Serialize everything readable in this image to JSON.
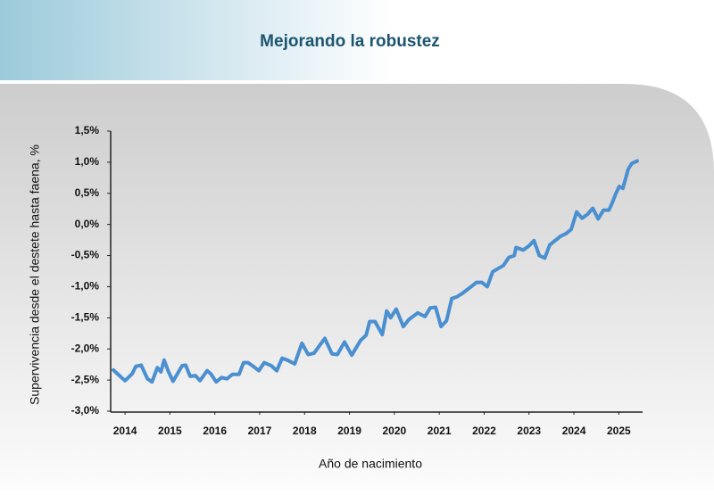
{
  "chart_data": {
    "type": "line",
    "title": "Mejorando la robustez",
    "x_label": "Año de nacimiento",
    "y_label": "Supervivencia desde el destete hasta faena, %",
    "color": "#4a8fd0",
    "grid": false,
    "xlim": [
      2013.68,
      2025.53
    ],
    "xticks": [
      2014,
      2015,
      2016,
      2017,
      2018,
      2019,
      2020,
      2021,
      2022,
      2023,
      2024,
      2025
    ],
    "ylim": [
      -3,
      1.5
    ],
    "yticks": [
      {
        "value": 1.5,
        "label": "1,5%"
      },
      {
        "value": 1,
        "label": "1,0%"
      },
      {
        "value": 0.5,
        "label": "0,5%"
      },
      {
        "value": 0,
        "label": "0,0%"
      },
      {
        "value": -0.5,
        "label": "-0,5%"
      },
      {
        "value": -1,
        "label": "-1,0%"
      },
      {
        "value": -1.5,
        "label": "-1,5%"
      },
      {
        "value": -2,
        "label": "-2,0%"
      },
      {
        "value": -2.5,
        "label": "-2,5%"
      },
      {
        "value": -3,
        "label": "-3,0%"
      }
    ],
    "x": [
      2013.74,
      2013.86,
      2014.0,
      2014.16,
      2014.24,
      2014.36,
      2014.5,
      2014.6,
      2014.72,
      2014.8,
      2014.87,
      2014.97,
      2015.07,
      2015.27,
      2015.35,
      2015.45,
      2015.57,
      2015.67,
      2015.83,
      2015.91,
      2016.03,
      2016.15,
      2016.27,
      2016.39,
      2016.54,
      2016.64,
      2016.74,
      2016.84,
      2016.98,
      2017.1,
      2017.26,
      2017.38,
      2017.5,
      2017.62,
      2017.78,
      2017.94,
      2018.08,
      2018.21,
      2018.45,
      2018.61,
      2018.73,
      2018.89,
      2019.05,
      2019.25,
      2019.37,
      2019.45,
      2019.57,
      2019.73,
      2019.83,
      2019.92,
      2020.04,
      2020.2,
      2020.32,
      2020.52,
      2020.68,
      2020.8,
      2020.92,
      2021.04,
      2021.16,
      2021.28,
      2021.4,
      2021.51,
      2021.71,
      2021.83,
      2021.95,
      2022.07,
      2022.19,
      2022.31,
      2022.43,
      2022.55,
      2022.67,
      2022.71,
      2022.87,
      2022.99,
      2023.11,
      2023.23,
      2023.35,
      2023.46,
      2023.58,
      2023.7,
      2023.82,
      2023.94,
      2024.06,
      2024.18,
      2024.3,
      2024.42,
      2024.54,
      2024.66,
      2024.78,
      2024.85,
      2024.93,
      2025.01,
      2025.09,
      2025.21,
      2025.29,
      2025.41
    ],
    "values": [
      -2.34,
      -2.42,
      -2.51,
      -2.4,
      -2.28,
      -2.26,
      -2.48,
      -2.53,
      -2.3,
      -2.37,
      -2.18,
      -2.37,
      -2.52,
      -2.27,
      -2.26,
      -2.44,
      -2.43,
      -2.51,
      -2.35,
      -2.4,
      -2.53,
      -2.46,
      -2.48,
      -2.41,
      -2.41,
      -2.22,
      -2.22,
      -2.27,
      -2.35,
      -2.22,
      -2.27,
      -2.35,
      -2.15,
      -2.18,
      -2.24,
      -1.91,
      -2.09,
      -2.07,
      -1.83,
      -2.08,
      -2.09,
      -1.89,
      -2.1,
      -1.86,
      -1.78,
      -1.56,
      -1.56,
      -1.77,
      -1.39,
      -1.5,
      -1.36,
      -1.64,
      -1.53,
      -1.42,
      -1.48,
      -1.34,
      -1.33,
      -1.64,
      -1.55,
      -1.19,
      -1.16,
      -1.11,
      -1.0,
      -0.93,
      -0.93,
      -1.0,
      -0.76,
      -0.71,
      -0.66,
      -0.53,
      -0.5,
      -0.37,
      -0.41,
      -0.35,
      -0.26,
      -0.5,
      -0.54,
      -0.33,
      -0.26,
      -0.19,
      -0.15,
      -0.08,
      0.2,
      0.1,
      0.16,
      0.26,
      0.09,
      0.23,
      0.23,
      0.34,
      0.49,
      0.61,
      0.58,
      0.89,
      0.98,
      1.02
    ]
  }
}
